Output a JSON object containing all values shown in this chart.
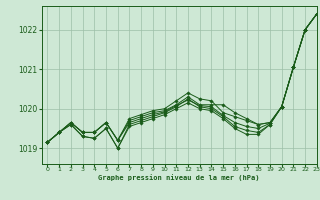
{
  "title": "Graphe pression niveau de la mer (hPa)",
  "background_color": "#cee8d5",
  "grid_color": "#9dbfa8",
  "line_color": "#1a5c1a",
  "xlim": [
    -0.5,
    23
  ],
  "ylim": [
    1018.6,
    1022.6
  ],
  "yticks": [
    1019,
    1020,
    1021,
    1022
  ],
  "xticks": [
    0,
    1,
    2,
    3,
    4,
    5,
    6,
    7,
    8,
    9,
    10,
    11,
    12,
    13,
    14,
    15,
    16,
    17,
    18,
    19,
    20,
    21,
    22,
    23
  ],
  "series": [
    [
      1019.15,
      1019.4,
      1019.65,
      1019.4,
      1019.4,
      1019.65,
      1019.2,
      1019.7,
      1019.8,
      1019.9,
      1019.95,
      1020.1,
      1020.3,
      1020.1,
      1020.1,
      1020.1,
      1019.9,
      1019.75,
      1019.6,
      1019.65,
      1020.05,
      1021.05,
      1022.0,
      1022.4
    ],
    [
      1019.15,
      1019.4,
      1019.65,
      1019.4,
      1019.4,
      1019.65,
      1019.2,
      1019.75,
      1019.85,
      1019.95,
      1020.0,
      1020.2,
      1020.4,
      1020.25,
      1020.2,
      1019.9,
      1019.8,
      1019.7,
      1019.6,
      1019.65,
      1020.05,
      1021.05,
      1022.0,
      1022.4
    ],
    [
      1019.15,
      1019.4,
      1019.6,
      1019.3,
      1019.25,
      1019.5,
      1019.0,
      1019.6,
      1019.7,
      1019.8,
      1019.9,
      1020.05,
      1020.25,
      1020.05,
      1020.0,
      1019.8,
      1019.55,
      1019.45,
      1019.4,
      1019.6,
      1020.05,
      1021.05,
      1022.0,
      1022.4
    ],
    [
      1019.15,
      1019.4,
      1019.6,
      1019.3,
      1019.25,
      1019.5,
      1019.0,
      1019.55,
      1019.65,
      1019.75,
      1019.85,
      1020.0,
      1020.15,
      1020.0,
      1019.95,
      1019.75,
      1019.5,
      1019.35,
      1019.35,
      1019.6,
      1020.05,
      1021.05,
      1022.0,
      1022.4
    ],
    [
      1019.15,
      1019.4,
      1019.65,
      1019.4,
      1019.4,
      1019.65,
      1019.2,
      1019.65,
      1019.75,
      1019.85,
      1019.92,
      1020.08,
      1020.22,
      1020.08,
      1020.05,
      1019.83,
      1019.65,
      1019.55,
      1019.5,
      1019.63,
      1020.05,
      1021.05,
      1022.0,
      1022.4
    ]
  ]
}
